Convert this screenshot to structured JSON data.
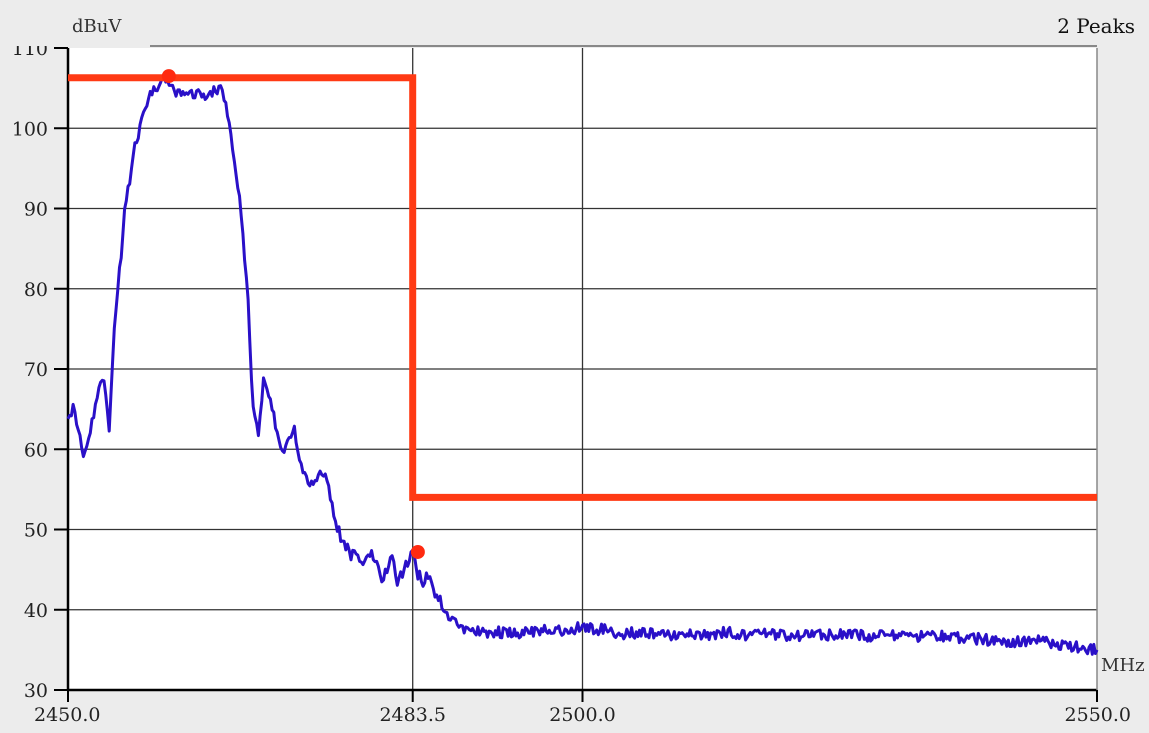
{
  "chart_data": {
    "type": "line",
    "title": "2 Peaks",
    "ylabel": "dBuV",
    "xlabel": "MHz",
    "xlim": [
      2450.0,
      2550.0
    ],
    "ylim": [
      30,
      110
    ],
    "y_ticks": [
      "30",
      "40",
      "50",
      "60",
      "70",
      "80",
      "90",
      "100",
      "110"
    ],
    "x_ticks": [
      {
        "value": 2450.0,
        "label": "2450.0"
      },
      {
        "value": 2483.5,
        "label": "2483.5"
      },
      {
        "value": 2500.0,
        "label": "2500.0"
      },
      {
        "value": 2550.0,
        "label": "2550.0"
      }
    ],
    "grid": {
      "horizontal_every": 10,
      "vertical_at": [
        2483.5,
        2500.0
      ]
    },
    "colors": {
      "trace": "#2a10c8",
      "limit": "#ff3a14",
      "markers": "#ff2a10",
      "grid": "#333333",
      "plot_bg": "#ffffff",
      "frame_bg": "#ececec"
    },
    "series": [
      {
        "kind": "trace",
        "x": [
          2450.0,
          2450.5,
          2451.0,
          2451.5,
          2452.0,
          2452.5,
          2453.0,
          2453.5,
          2454.0,
          2454.5,
          2455.0,
          2455.5,
          2456.0,
          2456.5,
          2457.0,
          2457.5,
          2458.0,
          2458.5,
          2459.0,
          2459.5,
          2460.0,
          2461.0,
          2462.0,
          2463.0,
          2464.0,
          2465.0,
          2465.5,
          2466.0,
          2466.5,
          2467.0,
          2467.5,
          2468.0,
          2468.5,
          2469.0,
          2469.5,
          2470.0,
          2470.5,
          2471.0,
          2471.5,
          2472.0,
          2472.5,
          2473.0,
          2473.5,
          2474.0,
          2474.5,
          2475.0,
          2475.5,
          2476.0,
          2476.5,
          2477.0,
          2477.5,
          2478.0,
          2478.5,
          2479.0,
          2479.5,
          2480.0,
          2480.5,
          2481.0,
          2481.5,
          2482.0,
          2482.5,
          2483.0,
          2483.5,
          2484.0,
          2484.5,
          2485.0,
          2485.5,
          2486.0,
          2486.5,
          2487.0,
          2488.0,
          2489.0,
          2490.0,
          2492.0,
          2494.0,
          2496.0,
          2498.0,
          2500.0,
          2502.0,
          2504.0,
          2506.0,
          2508.0,
          2510.0,
          2512.0,
          2514.0,
          2516.0,
          2518.0,
          2520.0,
          2522.0,
          2524.0,
          2526.0,
          2528.0,
          2530.0,
          2532.0,
          2534.0,
          2536.0,
          2538.0,
          2540.0,
          2542.0,
          2544.0,
          2546.0,
          2548.0,
          2550.0
        ],
        "y": [
          64.5,
          65.0,
          63.0,
          59.0,
          61.5,
          64.0,
          67.5,
          69.0,
          62.5,
          75.0,
          82.0,
          89.5,
          93.5,
          97.5,
          100.0,
          102.5,
          104.0,
          104.8,
          105.5,
          106.0,
          105.0,
          104.0,
          104.5,
          104.0,
          104.5,
          105.0,
          101.5,
          98.0,
          93.0,
          87.0,
          78.0,
          65.0,
          62.0,
          69.0,
          67.0,
          64.5,
          60.5,
          59.0,
          61.5,
          62.5,
          58.5,
          56.5,
          55.5,
          56.5,
          57.0,
          56.5,
          54.0,
          51.0,
          49.0,
          48.0,
          46.5,
          47.5,
          45.5,
          46.5,
          47.5,
          45.5,
          43.5,
          45.0,
          47.0,
          43.5,
          44.5,
          46.0,
          47.0,
          44.5,
          43.5,
          44.5,
          42.5,
          41.5,
          40.0,
          39.0,
          38.0,
          37.5,
          37.3,
          37.2,
          37.1,
          37.5,
          37.3,
          37.8,
          37.5,
          37.0,
          37.3,
          36.8,
          37.2,
          36.9,
          37.2,
          36.7,
          37.0,
          36.8,
          36.7,
          36.9,
          37.0,
          36.6,
          36.8,
          36.5,
          36.9,
          36.6,
          36.4,
          36.2,
          36.0,
          36.2,
          35.8,
          35.4,
          35.0
        ]
      },
      {
        "kind": "limit",
        "x": [
          2450.0,
          2483.5,
          2483.5,
          2550.0
        ],
        "y": [
          106.3,
          106.3,
          54.0,
          54.0
        ]
      }
    ],
    "peaks": [
      {
        "x": 2459.8,
        "y": 106.5
      },
      {
        "x": 2484.0,
        "y": 47.2
      }
    ]
  }
}
